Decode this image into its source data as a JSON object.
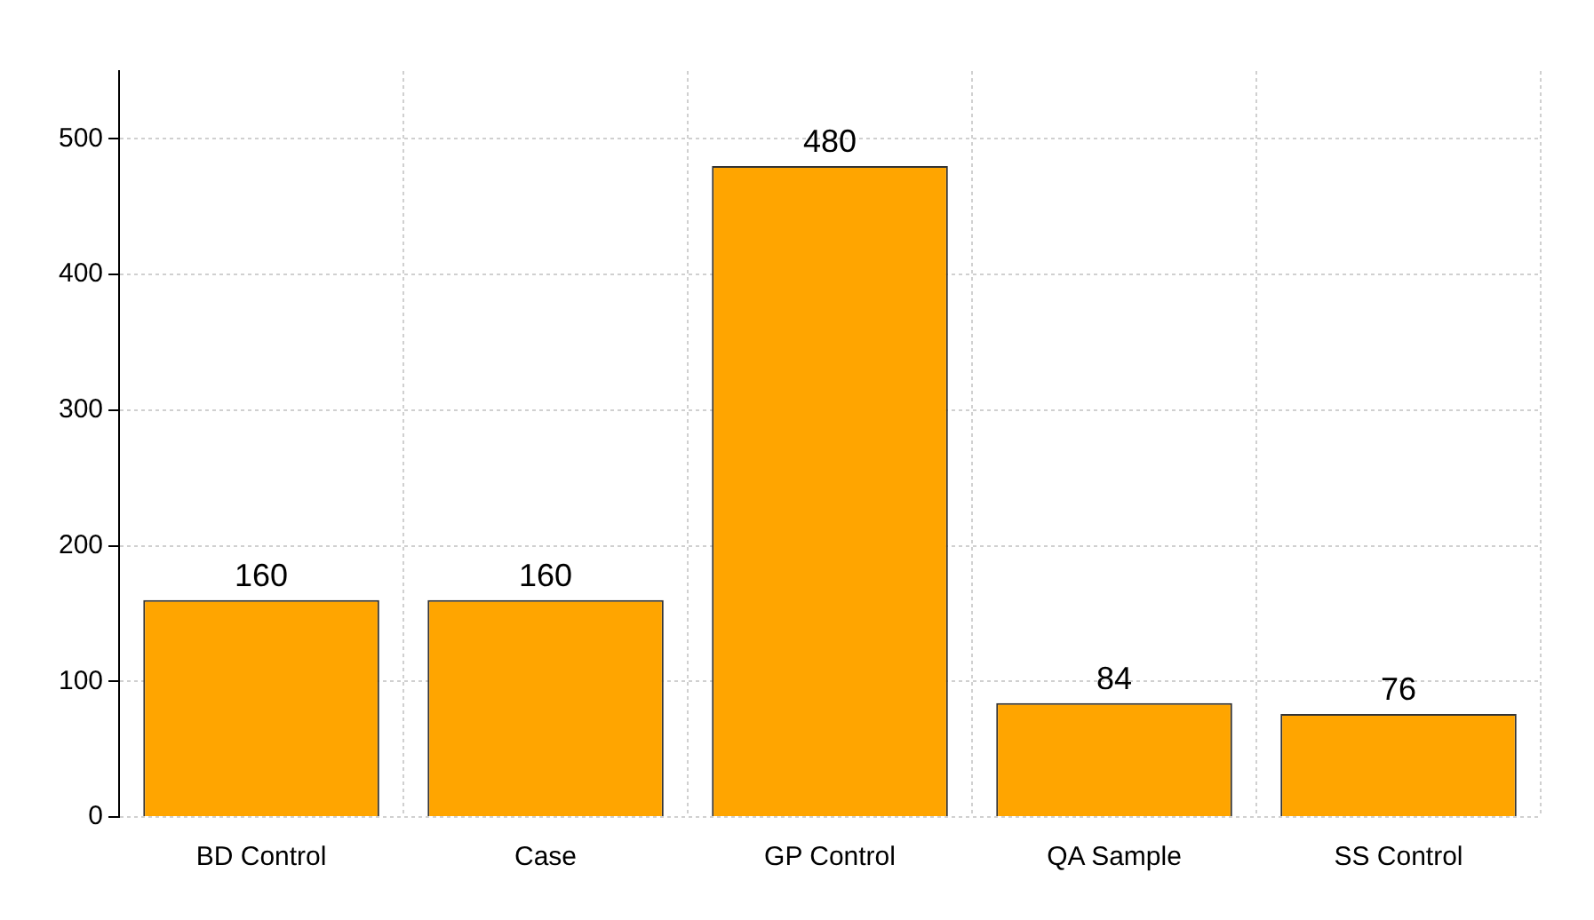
{
  "chart_data": {
    "type": "bar",
    "categories": [
      "BD Control",
      "Case",
      "GP Control",
      "QA Sample",
      "SS Control"
    ],
    "values": [
      160,
      160,
      480,
      84,
      76
    ],
    "color": "#ffa500",
    "ylim": [
      0,
      550
    ],
    "yticks": [
      0,
      100,
      200,
      300,
      400,
      500
    ],
    "grid": true,
    "data_labels": true
  }
}
